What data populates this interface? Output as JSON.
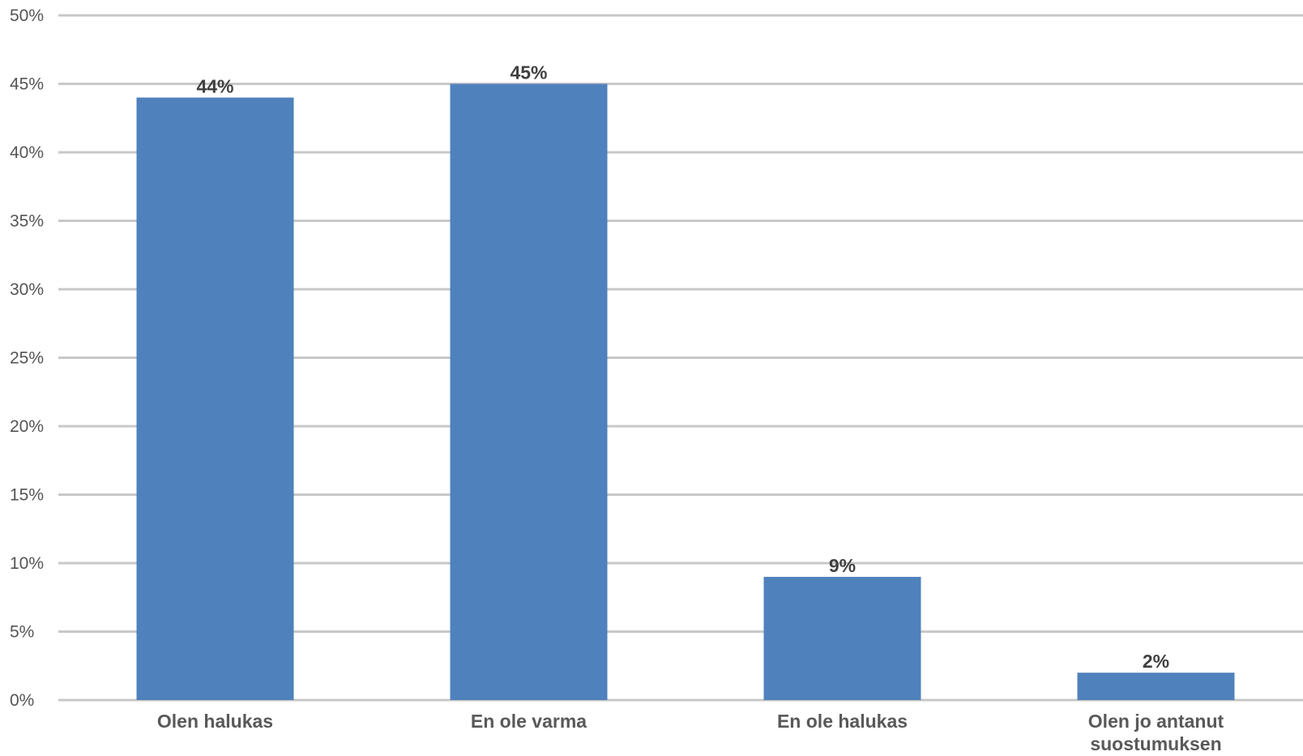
{
  "chart_data": {
    "type": "bar",
    "categories": [
      [
        "Olen halukas"
      ],
      [
        "En ole varma"
      ],
      [
        "En ole halukas"
      ],
      [
        "Olen jo antanut",
        "suostumuksen"
      ]
    ],
    "values": [
      44,
      45,
      9,
      2
    ],
    "value_labels": [
      "44%",
      "45%",
      "9%",
      "2%"
    ],
    "yticks": [
      0,
      5,
      10,
      15,
      20,
      25,
      30,
      35,
      40,
      45,
      50
    ],
    "ytick_labels": [
      "0%",
      "5%",
      "10%",
      "15%",
      "20%",
      "25%",
      "30%",
      "35%",
      "40%",
      "45%",
      "50%"
    ],
    "ylim": [
      0,
      50
    ],
    "title": "",
    "xlabel": "",
    "ylabel": "",
    "grid": true,
    "legend": "none",
    "colors": {
      "bar": "#4f81bd",
      "grid": "#c8c8c8"
    }
  }
}
